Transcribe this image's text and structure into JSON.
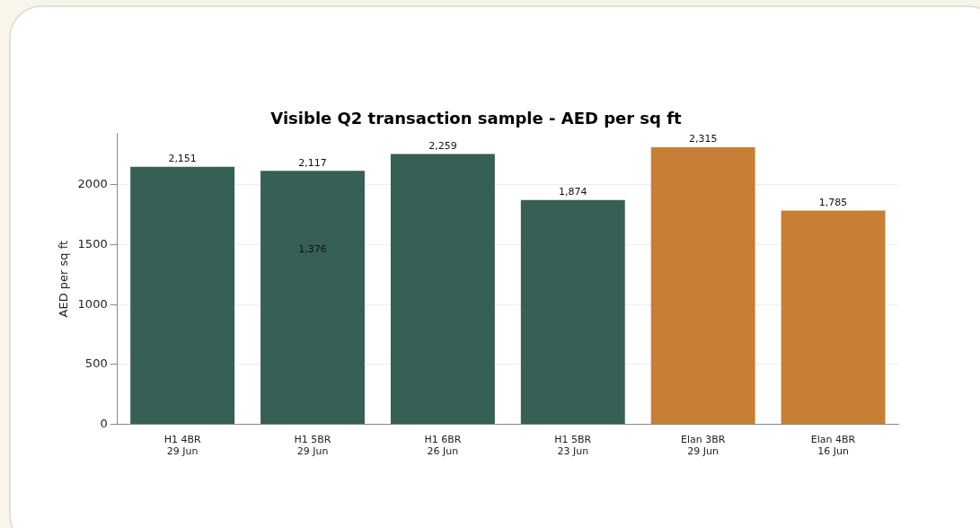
{
  "chart_data": {
    "type": "bar",
    "title": "Visible Q2 transaction sample - AED per sq ft",
    "ylabel": "AED per sq ft",
    "categories": [
      "H1 4BR\n29 Jun",
      "H1 5BR\n29 Jun",
      "H1 6BR\n26 Jun",
      "H1 5BR\n23 Jun",
      "Elan 3BR\n29 Jun",
      "Elan 4BR\n16 Jun"
    ],
    "values": [
      2151,
      2117,
      2259,
      1874,
      2315,
      1785
    ],
    "colors": [
      "#365f55",
      "#365f55",
      "#365f55",
      "#365f55",
      "#c67f35",
      "#c67f35"
    ],
    "value_labels": [
      "2,151",
      "2,117",
      "2,259",
      "1,874",
      "2,315",
      "1,785"
    ],
    "annotations": [
      "1,376"
    ],
    "ylim": [
      0,
      2430
    ],
    "yticks": [
      0,
      500,
      1000,
      1500,
      2000
    ],
    "grid": "y",
    "legend": false
  }
}
